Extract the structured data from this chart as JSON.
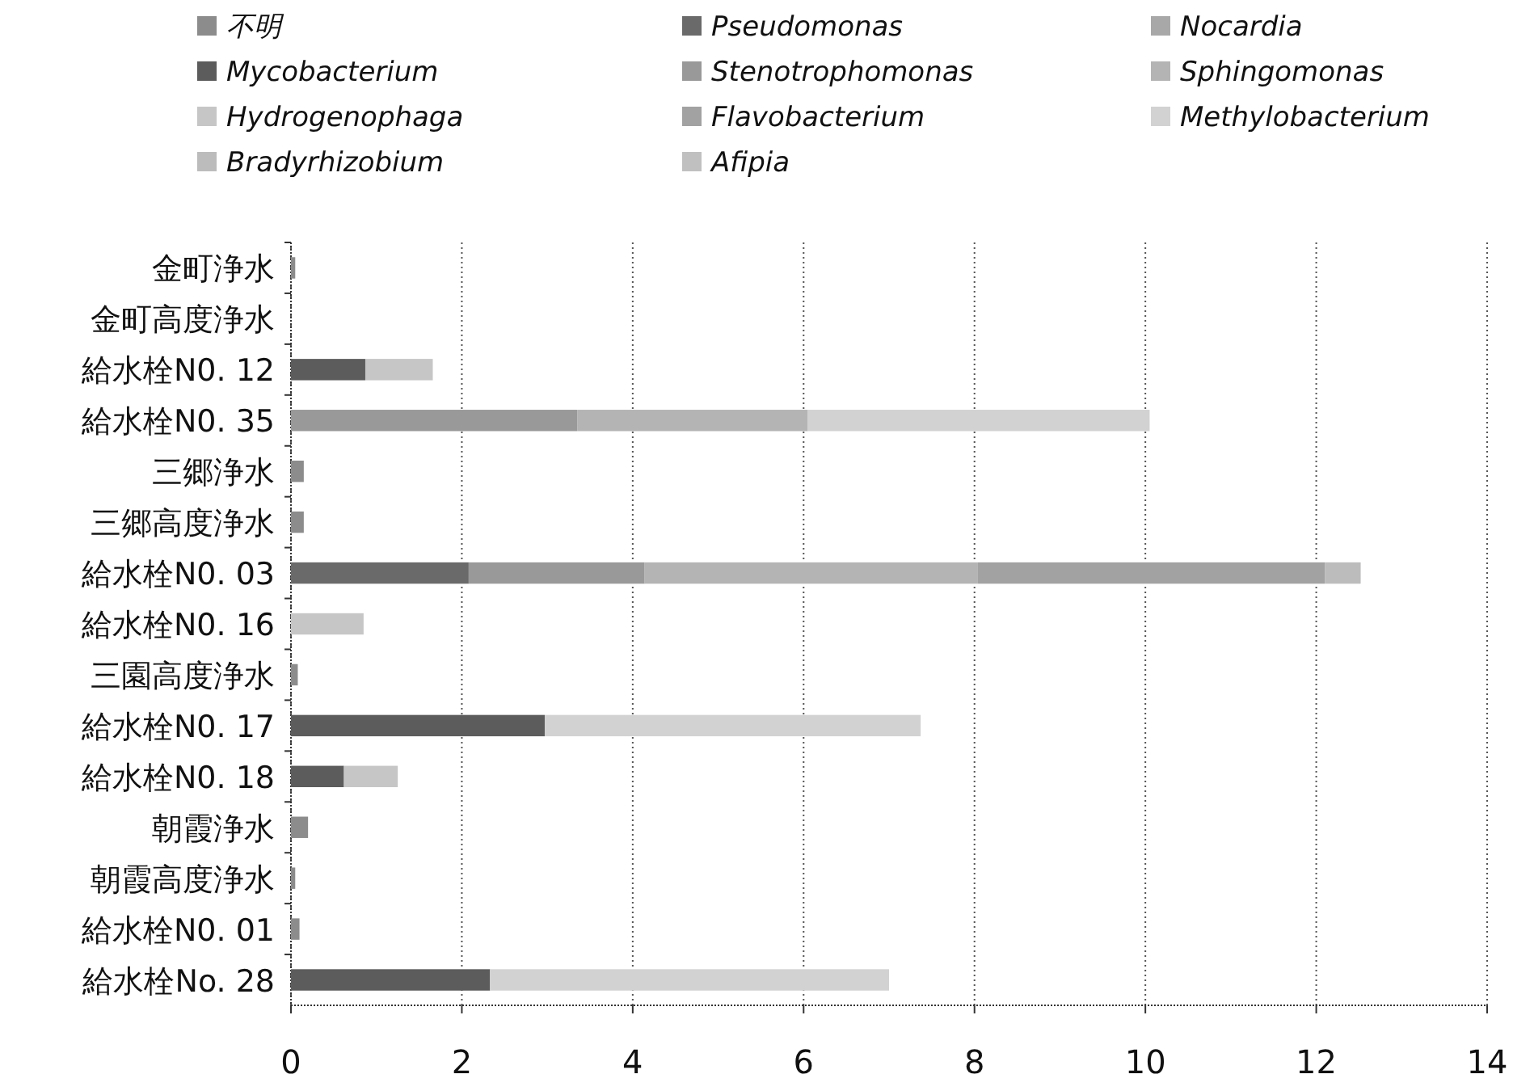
{
  "chart_data": {
    "type": "bar",
    "orientation": "horizontal",
    "stacked": true,
    "grid": "x",
    "legend": "top",
    "categories": [
      "金町浄水",
      "金町高度浄水",
      "給水栓N0. 12",
      "給水栓N0. 35",
      "三郷浄水",
      "三郷高度浄水",
      "給水栓N0. 03",
      "給水栓N0. 16",
      "三園高度浄水",
      "給水栓N0. 17",
      "給水栓N0. 18",
      "朝霞浄水",
      "朝霞高度浄水",
      "給水栓N0. 01",
      "給水栓No. 28"
    ],
    "xlim": [
      0,
      14
    ],
    "xticks": [
      0,
      2,
      4,
      6,
      8,
      10,
      12,
      14
    ],
    "series": [
      {
        "name": "*不明*",
        "color": "#8c8c8c",
        "values": [
          0.05,
          null,
          null,
          null,
          0.15,
          0.15,
          null,
          null,
          0.08,
          null,
          null,
          0.2,
          0.05,
          0.1,
          null
        ]
      },
      {
        "name": "*Pseudomonas*",
        "color": "#6a6a6a",
        "values": [
          null,
          null,
          null,
          null,
          null,
          null,
          2.08,
          null,
          null,
          null,
          null,
          null,
          null,
          null,
          null
        ]
      },
      {
        "name": "*Nocardia*",
        "color": "#a8a8a8",
        "values": [
          null,
          null,
          null,
          null,
          null,
          null,
          null,
          null,
          null,
          null,
          null,
          null,
          null,
          null,
          null
        ]
      },
      {
        "name": "*Mycobacterium*",
        "color": "#5c5c5c",
        "values": [
          null,
          null,
          0.87,
          null,
          null,
          null,
          null,
          null,
          null,
          2.97,
          0.62,
          null,
          null,
          null,
          2.33
        ]
      },
      {
        "name": "*Stenotrophomonas*",
        "color": "#999999",
        "values": [
          null,
          null,
          null,
          3.35,
          null,
          null,
          2.06,
          null,
          null,
          null,
          null,
          null,
          null,
          null,
          null
        ]
      },
      {
        "name": "*Sphingomonas*",
        "color": "#b4b4b4",
        "values": [
          null,
          null,
          null,
          2.7,
          null,
          null,
          3.9,
          null,
          null,
          null,
          null,
          null,
          null,
          null,
          null
        ]
      },
      {
        "name": "*Hydrogenophaga*",
        "color": "#c6c6c6",
        "values": [
          null,
          null,
          0.79,
          null,
          null,
          null,
          null,
          0.85,
          null,
          null,
          0.63,
          null,
          null,
          null,
          null
        ]
      },
      {
        "name": "*Flavobacterium*",
        "color": "#a2a2a2",
        "values": [
          null,
          null,
          null,
          null,
          null,
          null,
          4.06,
          null,
          null,
          null,
          null,
          null,
          null,
          null,
          null
        ]
      },
      {
        "name": "*Methylobacterium*",
        "color": "#d2d2d2",
        "values": [
          null,
          null,
          null,
          4.0,
          null,
          null,
          null,
          null,
          null,
          4.4,
          null,
          null,
          null,
          null,
          4.67
        ]
      },
      {
        "name": "*Bradyrhizobium*",
        "color": "#bcbcbc",
        "values": [
          null,
          null,
          null,
          null,
          null,
          null,
          0.42,
          null,
          null,
          null,
          null,
          null,
          null,
          null,
          null
        ]
      },
      {
        "name": "*Afipia*",
        "color": "#c0c0c0",
        "values": [
          null,
          null,
          null,
          null,
          null,
          null,
          null,
          null,
          null,
          null,
          null,
          null,
          null,
          null,
          null
        ]
      }
    ]
  }
}
